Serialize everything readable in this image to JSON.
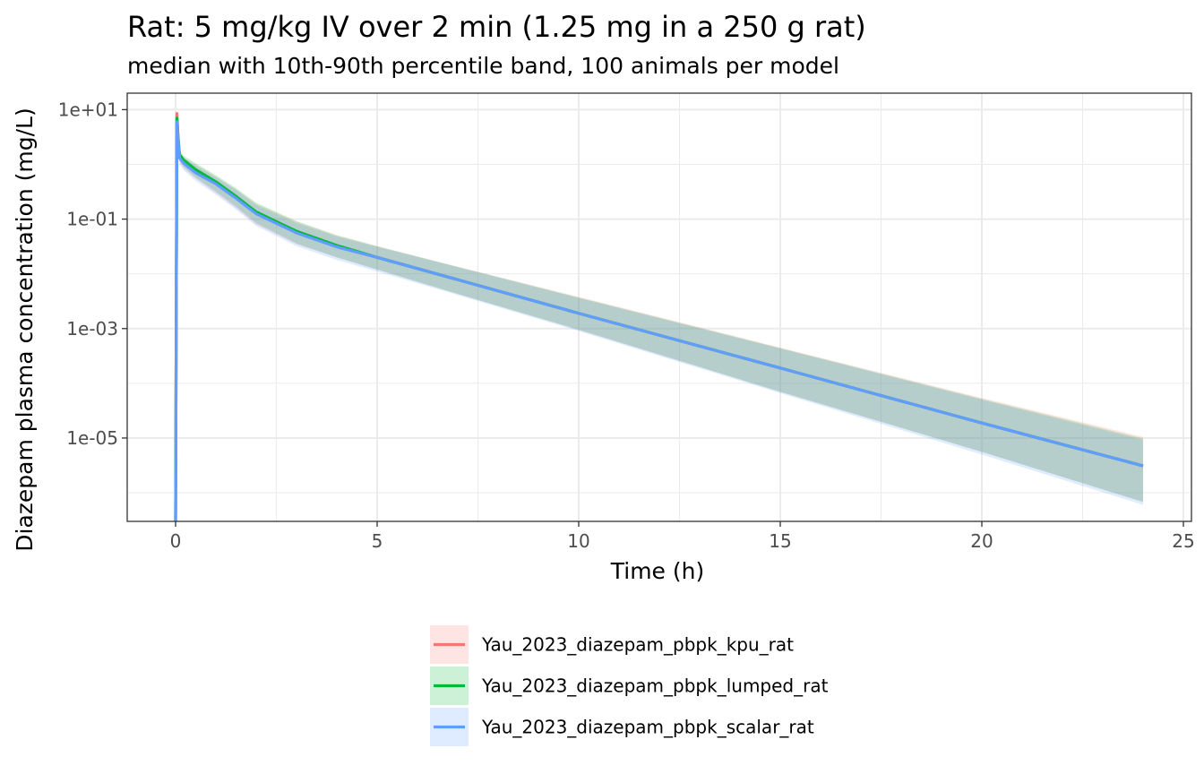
{
  "chart_data": {
    "type": "line",
    "title": "Rat: 5 mg/kg IV over 2 min (1.25 mg in a 250 g rat)",
    "subtitle": "median with 10th-90th percentile band, 100 animals per model",
    "xlabel": "Time (h)",
    "ylabel": "Diazepam plasma concentration (mg/L)",
    "xlim": [
      -1.2,
      25.2
    ],
    "ylim": [
      3e-07,
      20
    ],
    "x_scale": "linear",
    "y_scale": "log10",
    "x_ticks": [
      0,
      5,
      10,
      15,
      20,
      25
    ],
    "x_tick_labels": [
      "0",
      "5",
      "10",
      "15",
      "20",
      "25"
    ],
    "y_ticks": [
      10,
      0.1,
      0.001,
      1e-05
    ],
    "y_tick_labels": [
      "1e+01",
      "1e-01",
      "1e-03",
      "1e-05"
    ],
    "grid": true,
    "legend_position": "bottom",
    "series": [
      {
        "name": "Yau_2023_diazepam_pbpk_kpu_rat",
        "color": "#F8766D",
        "x": [
          0,
          0.033,
          0.06,
          0.1,
          0.2,
          0.5,
          1,
          1.5,
          2,
          3,
          4,
          5,
          7,
          10,
          15,
          20,
          24
        ],
        "median": [
          3e-07,
          8.5,
          3.5,
          1.4,
          1.1,
          0.75,
          0.45,
          0.25,
          0.13,
          0.058,
          0.032,
          0.02,
          0.0078,
          0.0019,
          0.00019,
          1.88e-05,
          3.1e-06
        ],
        "p10": [
          2.5e-07,
          7.5,
          2.8,
          1.1,
          0.85,
          0.55,
          0.3,
          0.16,
          0.08,
          0.035,
          0.02,
          0.012,
          0.0043,
          0.00095,
          7e-05,
          5.6e-06,
          6.8e-07
        ],
        "p90": [
          3.5e-07,
          9.5,
          4.5,
          1.7,
          1.35,
          1.0,
          0.6,
          0.35,
          0.19,
          0.09,
          0.05,
          0.032,
          0.0135,
          0.0038,
          0.00045,
          5.4e-05,
          1.05e-05
        ]
      },
      {
        "name": "Yau_2023_diazepam_pbpk_lumped_rat",
        "color": "#00BA38",
        "x": [
          0,
          0.033,
          0.06,
          0.1,
          0.2,
          0.5,
          1,
          1.5,
          2,
          3,
          4,
          5,
          7,
          10,
          15,
          20,
          24
        ],
        "median": [
          3e-07,
          7.0,
          3.2,
          1.5,
          1.2,
          0.8,
          0.48,
          0.26,
          0.135,
          0.06,
          0.033,
          0.02,
          0.0078,
          0.0019,
          0.00019,
          1.88e-05,
          3.1e-06
        ],
        "p10": [
          2.5e-07,
          6.0,
          2.6,
          1.2,
          0.9,
          0.58,
          0.32,
          0.17,
          0.085,
          0.036,
          0.02,
          0.012,
          0.0043,
          0.00095,
          7e-05,
          5.6e-06,
          6.8e-07
        ],
        "p90": [
          3.5e-07,
          8.0,
          4.0,
          1.8,
          1.45,
          1.05,
          0.64,
          0.37,
          0.2,
          0.092,
          0.051,
          0.032,
          0.0134,
          0.0037,
          0.00044,
          5.2e-05,
          9.8e-06
        ]
      },
      {
        "name": "Yau_2023_diazepam_pbpk_scalar_rat",
        "color": "#619CFF",
        "x": [
          0,
          0.033,
          0.06,
          0.1,
          0.2,
          0.5,
          1,
          1.5,
          2,
          3,
          4,
          5,
          7,
          10,
          15,
          20,
          24
        ],
        "median": [
          3e-07,
          6.0,
          3.0,
          1.3,
          1.05,
          0.7,
          0.44,
          0.24,
          0.125,
          0.056,
          0.031,
          0.02,
          0.0078,
          0.0019,
          0.00019,
          1.88e-05,
          3.1e-06
        ],
        "p10": [
          2.5e-07,
          5.2,
          2.4,
          1.0,
          0.78,
          0.5,
          0.28,
          0.15,
          0.075,
          0.032,
          0.018,
          0.011,
          0.0041,
          0.0009,
          6.6e-05,
          5e-06,
          6e-07
        ],
        "p90": [
          3.5e-07,
          7.0,
          3.8,
          1.6,
          1.3,
          0.95,
          0.58,
          0.34,
          0.18,
          0.085,
          0.048,
          0.031,
          0.0132,
          0.0036,
          0.00043,
          5e-05,
          9.2e-06
        ]
      }
    ]
  }
}
